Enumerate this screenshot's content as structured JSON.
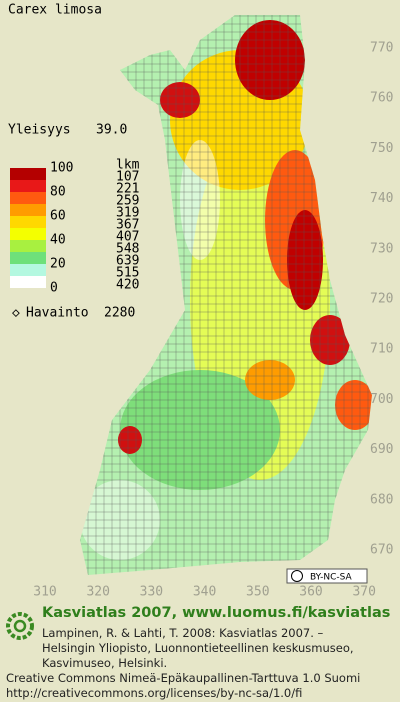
{
  "header": {
    "title": "Carex limosa",
    "frequency_label": "Yleisyys",
    "frequency_value": "39.0"
  },
  "legend": {
    "scale_labels": [
      "100",
      "80",
      "60",
      "40",
      "20",
      "0"
    ],
    "count_header": "lkm",
    "counts": [
      "107",
      "221",
      "259",
      "319",
      "367",
      "407",
      "548",
      "639",
      "515",
      "420"
    ],
    "colors": [
      "#b40000",
      "#e81818",
      "#ff5a10",
      "#ff9c00",
      "#ffd800",
      "#f4ff00",
      "#a8f040",
      "#6ee07a",
      "#b4f8e0",
      "#ffffff"
    ],
    "observation_label": "Havainto",
    "observation_count": "2280"
  },
  "axes": {
    "right": [
      "770",
      "760",
      "750",
      "740",
      "730",
      "720",
      "710",
      "700",
      "690",
      "680",
      "670"
    ],
    "bottom": [
      "310",
      "320",
      "330",
      "340",
      "350",
      "360",
      "370"
    ]
  },
  "badge": "BY-NC-SA",
  "footer": {
    "heading": "Kasviatlas 2007, www.luomus.fi/kasviatlas",
    "lines": [
      "Lampinen, R. & Lahti, T. 2008: Kasviatlas 2007. –",
      "Helsingin Yliopisto, Luonnontieteellinen keskusmuseo,",
      "Kasvimuseo, Helsinki."
    ],
    "license": [
      "Creative Commons Nimeä-Epäkaupallinen-Tarttuva 1.0 Suomi",
      "http://creativecommons.org/licenses/by-nc-sa/1.0/fi"
    ]
  }
}
